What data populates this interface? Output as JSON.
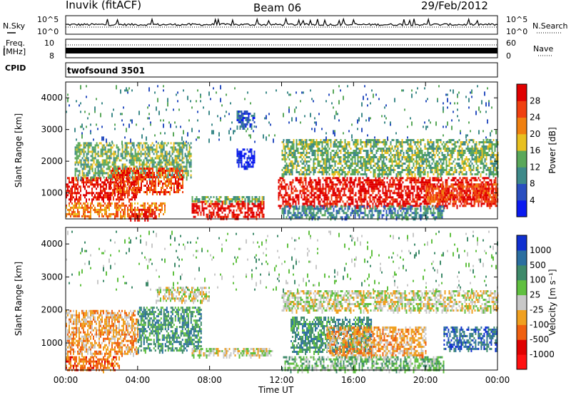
{
  "header": {
    "station": "Inuvik (fitACF)",
    "beam": "Beam 06",
    "date": "29/Feb/2012"
  },
  "left_labels": {
    "nsky": "N.Sky",
    "freq_line1": "Freq.",
    "freq_line2": "[MHz]",
    "cpid": "CPID"
  },
  "right_labels": {
    "nsearch": "N.Search",
    "nave": "Nave"
  },
  "cpid_value": "twofsound 3501",
  "noise_axis": {
    "top": "10^5",
    "bottom": "10^0"
  },
  "freq_axis": {
    "top": "10",
    "bottom": "8"
  },
  "nave_axis": {
    "top": "60",
    "bottom": "0"
  },
  "xlabel": "Time UT",
  "colors": {
    "line": "#000000",
    "background": "#ffffff"
  },
  "chart_data": [
    {
      "type": "heatmap",
      "name": "power-panel",
      "xlabel": "Time UT",
      "ylabel": "Slant Range [km]",
      "x_ticks": [
        "00:00",
        "04:00",
        "08:00",
        "12:00",
        "16:00",
        "20:00",
        "00:00"
      ],
      "x_range_hours": [
        0,
        24
      ],
      "y_ticks": [
        1000,
        2000,
        3000,
        4000
      ],
      "y_range_km": [
        180,
        4500
      ],
      "colorbar": {
        "label": "Power [dB]",
        "ticks": [
          "4",
          "8",
          "12",
          "16",
          "20",
          "24",
          "28"
        ],
        "range": [
          0,
          32
        ],
        "colors": [
          "#0a1af0",
          "#2a4fc0",
          "#3e8a8a",
          "#5aa85a",
          "#e8c020",
          "#f08010",
          "#f04010",
          "#e00000"
        ]
      },
      "scatter_bands": [
        {
          "t0": 0.0,
          "t1": 4.0,
          "r0": 800,
          "r1": 1500,
          "level": 7
        },
        {
          "t0": 0.0,
          "t1": 5.5,
          "r0": 250,
          "r1": 700,
          "level": 5
        },
        {
          "t0": 0.5,
          "t1": 7.0,
          "r0": 1500,
          "r1": 2600,
          "level": 3
        },
        {
          "t0": 2.5,
          "t1": 6.5,
          "r0": 1000,
          "r1": 1800,
          "level": 6
        },
        {
          "t0": 3.5,
          "t1": 5.0,
          "r0": 200,
          "r1": 500,
          "level": 7
        },
        {
          "t0": 7.0,
          "t1": 11.0,
          "r0": 250,
          "r1": 750,
          "level": 7
        },
        {
          "t0": 7.0,
          "t1": 11.0,
          "r0": 700,
          "r1": 900,
          "level": 3
        },
        {
          "t0": 9.5,
          "t1": 10.5,
          "r0": 1800,
          "r1": 2400,
          "level": 0
        },
        {
          "t0": 9.5,
          "t1": 10.5,
          "r0": 3100,
          "r1": 3600,
          "level": 1
        },
        {
          "t0": 11.8,
          "t1": 24.0,
          "r0": 600,
          "r1": 1500,
          "level": 7
        },
        {
          "t0": 12.0,
          "t1": 24.0,
          "r0": 1600,
          "r1": 2700,
          "level": 3
        },
        {
          "t0": 12.0,
          "t1": 21.0,
          "r0": 200,
          "r1": 600,
          "level": 2
        },
        {
          "t0": 20.0,
          "t1": 24.0,
          "r0": 700,
          "r1": 1300,
          "level": 6
        },
        {
          "t0": 0.0,
          "t1": 24.0,
          "r0": 2600,
          "r1": 4400,
          "level": 2,
          "sparse": true
        }
      ]
    },
    {
      "type": "heatmap",
      "name": "velocity-panel",
      "xlabel": "Time UT",
      "ylabel": "Slant Range [km]",
      "x_ticks": [
        "00:00",
        "04:00",
        "08:00",
        "12:00",
        "16:00",
        "20:00",
        "00:00"
      ],
      "x_range_hours": [
        0,
        24
      ],
      "y_ticks": [
        1000,
        2000,
        3000,
        4000
      ],
      "y_range_km": [
        180,
        4500
      ],
      "colorbar": {
        "label": "Velocity [m s⁻¹]",
        "ticks": [
          "1000",
          "500",
          "100",
          "25",
          "-25",
          "-100",
          "-500",
          "-1000"
        ],
        "colors": [
          "#1030d0",
          "#2b6fa0",
          "#3e8a6a",
          "#60c040",
          "#c8c8c8",
          "#f0a020",
          "#f06010",
          "#e00000",
          "#ff1010"
        ]
      },
      "scatter_bands": [
        {
          "t0": 0.0,
          "t1": 4.0,
          "r0": 700,
          "r1": 2000,
          "level": 5
        },
        {
          "t0": 0.0,
          "t1": 3.0,
          "r0": 200,
          "r1": 600,
          "level": 6
        },
        {
          "t0": 4.0,
          "t1": 7.5,
          "r0": 800,
          "r1": 2100,
          "level": 2
        },
        {
          "t0": 7.0,
          "t1": 11.5,
          "r0": 600,
          "r1": 850,
          "level": 4
        },
        {
          "t0": 5.0,
          "t1": 8.0,
          "r0": 2300,
          "r1": 2700,
          "level": 4
        },
        {
          "t0": 12.0,
          "t1": 24.0,
          "r0": 2000,
          "r1": 2600,
          "level": 4
        },
        {
          "t0": 12.5,
          "t1": 17.0,
          "r0": 700,
          "r1": 1800,
          "level": 2
        },
        {
          "t0": 14.5,
          "t1": 20.0,
          "r0": 600,
          "r1": 1500,
          "level": 5
        },
        {
          "t0": 21.0,
          "t1": 24.0,
          "r0": 800,
          "r1": 1500,
          "level": 1
        },
        {
          "t0": 12.0,
          "t1": 21.0,
          "r0": 200,
          "r1": 600,
          "level": 3
        },
        {
          "t0": 0.0,
          "t1": 24.0,
          "r0": 2600,
          "r1": 4400,
          "level": 3,
          "sparse": true
        }
      ]
    }
  ]
}
